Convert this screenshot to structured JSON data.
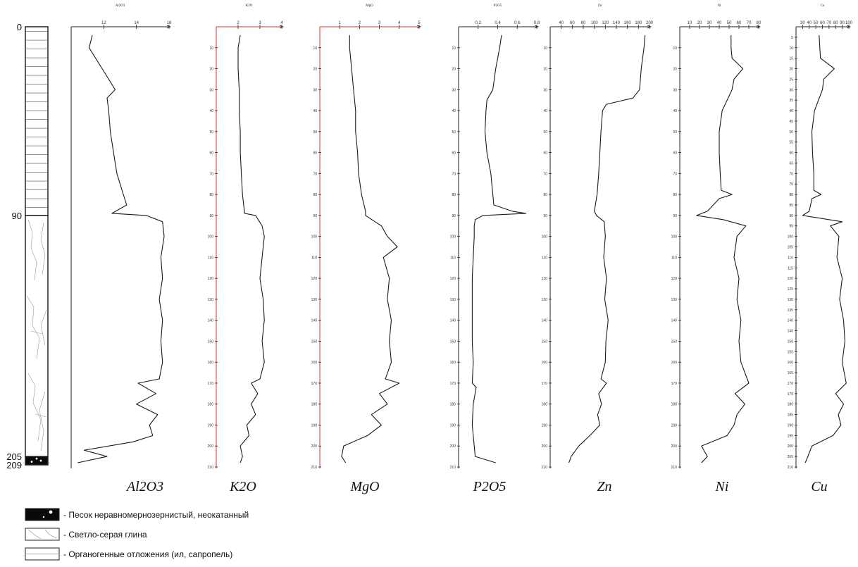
{
  "chart_data": {
    "type": "line",
    "orientation": "vertical-depth-profile",
    "depth_axis": {
      "ylim": [
        0,
        210
      ],
      "tick_step": 10
    },
    "lithology_column": {
      "depth_marks": [
        "0",
        "90",
        "205",
        "209"
      ],
      "layers": [
        {
          "top": 0,
          "bottom": 90,
          "pattern": "horizontal-lines"
        },
        {
          "top": 90,
          "bottom": 205,
          "pattern": "cracked-clay"
        },
        {
          "top": 205,
          "bottom": 209,
          "pattern": "black-sand"
        }
      ]
    },
    "panels": [
      {
        "id": "al2o3",
        "title": "Al2O3",
        "label": "Al2O3",
        "xlim": [
          10,
          16
        ],
        "xticks": [
          "12",
          "14",
          "16"
        ],
        "axis_color": "#222222",
        "depth_ticks": [],
        "depths": [
          4,
          10,
          20,
          30,
          34,
          40,
          50,
          60,
          70,
          80,
          85,
          89,
          90,
          93,
          100,
          110,
          120,
          130,
          140,
          150,
          160,
          168,
          170,
          175,
          180,
          185,
          190,
          195,
          198,
          202,
          205,
          208
        ],
        "values": [
          11.3,
          11.1,
          11.9,
          12.7,
          12.2,
          12.3,
          12.4,
          12.6,
          12.8,
          13.2,
          13.4,
          12.5,
          14.6,
          15.6,
          15.7,
          15.5,
          15.6,
          15.4,
          15.6,
          15.5,
          15.6,
          15.4,
          14.1,
          15.2,
          14.0,
          15.3,
          14.8,
          15.0,
          13.8,
          10.8,
          12.2,
          10.4
        ]
      },
      {
        "id": "k2o",
        "title": "K2O",
        "label": "K2O",
        "xlim": [
          1,
          4
        ],
        "xticks": [
          "2",
          "3",
          "4"
        ],
        "axis_color": "#e03030",
        "depth_ticks": [
          "10",
          "20",
          "30",
          "40",
          "50",
          "60",
          "70",
          "80",
          "90",
          "100",
          "110",
          "120",
          "130",
          "140",
          "150",
          "160",
          "170",
          "180",
          "190",
          "200",
          "210"
        ],
        "depths": [
          4,
          10,
          20,
          30,
          40,
          50,
          60,
          70,
          80,
          89,
          90,
          95,
          100,
          110,
          120,
          130,
          140,
          150,
          160,
          168,
          170,
          175,
          180,
          185,
          190,
          195,
          200,
          205,
          208
        ],
        "values": [
          2.1,
          2.0,
          2.0,
          2.05,
          2.05,
          2.1,
          2.1,
          2.15,
          2.2,
          2.3,
          2.8,
          3.1,
          3.2,
          3.1,
          3.0,
          3.15,
          3.2,
          3.1,
          3.2,
          3.0,
          2.6,
          2.9,
          2.6,
          2.8,
          2.4,
          2.5,
          2.1,
          2.2,
          2.1
        ]
      },
      {
        "id": "mgo",
        "title": "MgO",
        "label": "MgO",
        "xlim": [
          0,
          5
        ],
        "xticks": [
          "1",
          "2",
          "3",
          "4",
          "5"
        ],
        "axis_color": "#e03030",
        "depth_ticks": [
          "10",
          "20",
          "30",
          "40",
          "50",
          "60",
          "70",
          "80",
          "90",
          "100",
          "110",
          "120",
          "130",
          "140",
          "150",
          "160",
          "170",
          "180",
          "190",
          "200",
          "210"
        ],
        "depths": [
          4,
          10,
          20,
          30,
          40,
          50,
          60,
          70,
          80,
          88,
          90,
          95,
          100,
          105,
          110,
          120,
          130,
          140,
          150,
          160,
          168,
          170,
          175,
          180,
          185,
          190,
          195,
          200,
          205,
          208
        ],
        "values": [
          1.5,
          1.5,
          1.6,
          1.7,
          1.8,
          1.8,
          1.9,
          1.95,
          2.1,
          2.3,
          2.3,
          3.1,
          3.4,
          3.9,
          3.2,
          3.5,
          3.4,
          3.6,
          3.5,
          3.6,
          3.3,
          4.0,
          3.0,
          3.4,
          2.6,
          3.1,
          2.4,
          1.2,
          1.1,
          1.3
        ]
      },
      {
        "id": "p2o5",
        "title": "P2O5",
        "label": "P2O5",
        "xlim": [
          0,
          0.8
        ],
        "xticks": [
          "0.2",
          "0.4",
          "0.6",
          "0.8"
        ],
        "axis_color": "#222222",
        "depth_ticks": [
          "10",
          "20",
          "30",
          "40",
          "50",
          "60",
          "70",
          "80",
          "90",
          "100",
          "110",
          "120",
          "130",
          "140",
          "150",
          "160",
          "170",
          "180",
          "190",
          "200",
          "210"
        ],
        "depths": [
          4,
          10,
          20,
          30,
          35,
          40,
          50,
          60,
          70,
          80,
          85,
          88,
          89,
          90,
          92,
          95,
          100,
          110,
          120,
          130,
          140,
          150,
          160,
          170,
          172,
          180,
          190,
          200,
          205,
          208
        ],
        "values": [
          0.44,
          0.42,
          0.38,
          0.35,
          0.29,
          0.28,
          0.27,
          0.29,
          0.33,
          0.35,
          0.36,
          0.55,
          0.69,
          0.25,
          0.17,
          0.16,
          0.16,
          0.15,
          0.14,
          0.14,
          0.14,
          0.14,
          0.15,
          0.14,
          0.18,
          0.15,
          0.14,
          0.16,
          0.17,
          0.38
        ]
      },
      {
        "id": "zn",
        "title": "Zn",
        "label": "Zn",
        "xlim": [
          20,
          200
        ],
        "xticks": [
          "40",
          "60",
          "80",
          "100",
          "120",
          "140",
          "160",
          "180",
          "200"
        ],
        "axis_color": "#222222",
        "depth_ticks": [
          "10",
          "20",
          "30",
          "40",
          "50",
          "60",
          "70",
          "80",
          "90",
          "100",
          "110",
          "120",
          "130",
          "140",
          "150",
          "160",
          "170",
          "180",
          "190",
          "200",
          "210"
        ],
        "depths": [
          4,
          10,
          20,
          30,
          34,
          37,
          40,
          50,
          60,
          70,
          80,
          88,
          90,
          93,
          100,
          110,
          120,
          130,
          140,
          150,
          160,
          168,
          170,
          175,
          180,
          185,
          190,
          195,
          200,
          205,
          208
        ],
        "values": [
          192,
          190,
          185,
          182,
          170,
          122,
          115,
          112,
          110,
          108,
          105,
          100,
          104,
          118,
          120,
          117,
          122,
          119,
          125,
          121,
          120,
          112,
          122,
          108,
          113,
          106,
          110,
          92,
          72,
          58,
          54
        ]
      },
      {
        "id": "ni",
        "title": "Ni",
        "label": "Ni",
        "xlim": [
          0,
          80
        ],
        "xticks": [
          "10",
          "20",
          "30",
          "40",
          "50",
          "60",
          "70",
          "80"
        ],
        "axis_color": "#222222",
        "depth_ticks": [
          "10",
          "20",
          "30",
          "40",
          "50",
          "60",
          "70",
          "80",
          "90",
          "100",
          "110",
          "120",
          "130",
          "140",
          "150",
          "160",
          "170",
          "180",
          "190",
          "200",
          "210"
        ],
        "depths": [
          4,
          10,
          15,
          20,
          25,
          30,
          40,
          50,
          60,
          70,
          78,
          80,
          82,
          88,
          90,
          92,
          95,
          100,
          110,
          120,
          130,
          140,
          150,
          160,
          170,
          175,
          180,
          185,
          190,
          195,
          200,
          205,
          208
        ],
        "values": [
          52,
          52,
          53,
          64,
          55,
          53,
          43,
          40,
          40,
          41,
          42,
          53,
          40,
          28,
          17,
          44,
          67,
          58,
          55,
          60,
          58,
          62,
          60,
          62,
          70,
          56,
          66,
          58,
          55,
          48,
          22,
          28,
          22
        ]
      },
      {
        "id": "cu",
        "title": "Cu",
        "label": "Cu",
        "xlim": [
          20,
          100
        ],
        "xticks": [
          "30",
          "40",
          "50",
          "60",
          "70",
          "80",
          "90",
          "100"
        ],
        "axis_color": "#222222",
        "depth_ticks": [
          "5",
          "10",
          "15",
          "20",
          "25",
          "30",
          "35",
          "40",
          "45",
          "50",
          "55",
          "60",
          "65",
          "70",
          "75",
          "80",
          "85",
          "90",
          "95",
          "100",
          "105",
          "110",
          "115",
          "120",
          "125",
          "130",
          "135",
          "140",
          "145",
          "150",
          "155",
          "160",
          "165",
          "170",
          "175",
          "180",
          "185",
          "190",
          "195",
          "200",
          "205",
          "210"
        ],
        "depths": [
          4,
          10,
          15,
          20,
          25,
          30,
          40,
          50,
          60,
          70,
          78,
          80,
          82,
          88,
          90,
          93,
          95,
          100,
          110,
          120,
          130,
          140,
          150,
          160,
          170,
          175,
          180,
          185,
          190,
          195,
          200,
          205,
          208
        ],
        "values": [
          55,
          56,
          57,
          78,
          62,
          60,
          48,
          44,
          45,
          47,
          47,
          58,
          44,
          40,
          30,
          90,
          72,
          85,
          82,
          90,
          86,
          92,
          94,
          90,
          96,
          80,
          92,
          84,
          88,
          76,
          44,
          38,
          34
        ]
      }
    ],
    "legend": [
      {
        "pattern": "black-sand",
        "text": "- Песок неравномернозернистый, неокатанный"
      },
      {
        "pattern": "cracked-clay",
        "text": "- Светло-серая глина"
      },
      {
        "pattern": "horizontal-lines",
        "text": "- Органогенные отложения (ил, сапропель)"
      }
    ],
    "colors": {
      "line": "#1a1a1a",
      "accent_red": "#e03030"
    }
  }
}
